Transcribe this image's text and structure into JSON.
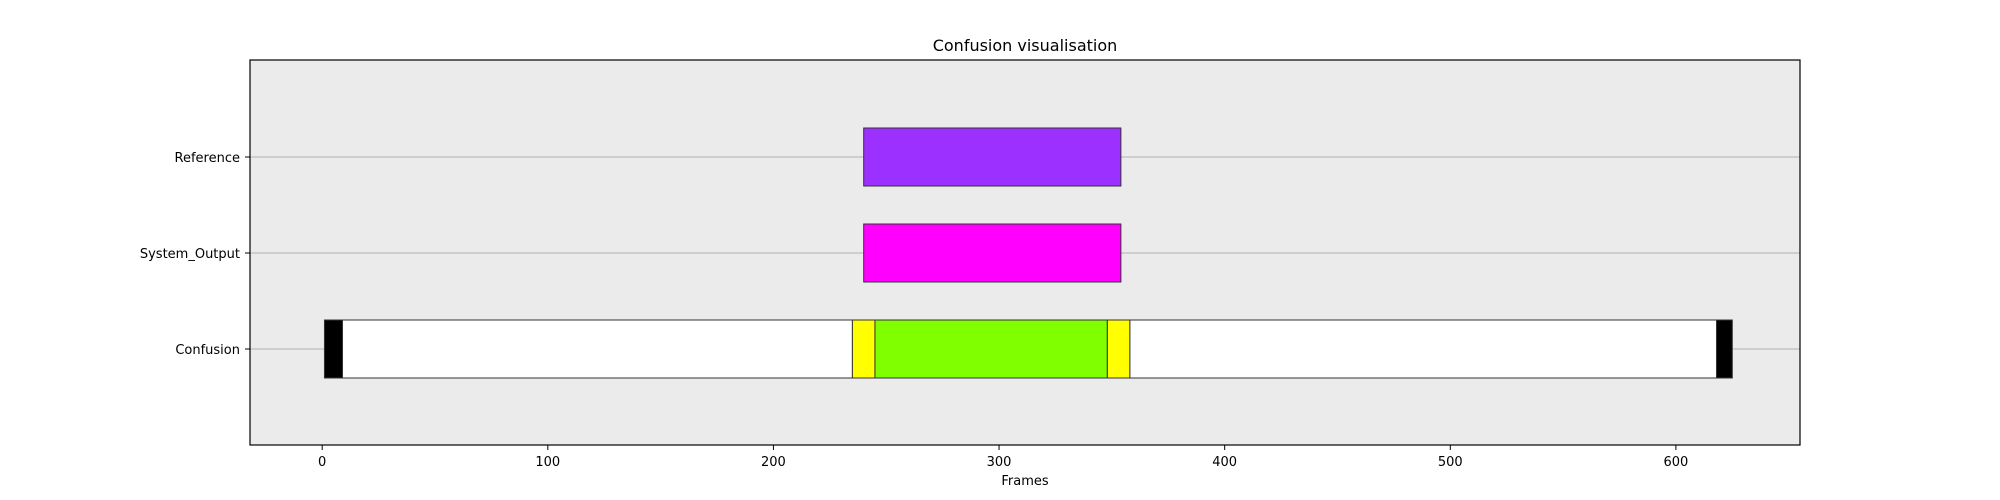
{
  "chart_data": {
    "type": "broken_barh",
    "title": "Confusion visualisation",
    "xlabel": "Frames",
    "ylabel": "",
    "xlim": [
      -32,
      655
    ],
    "x_ticks": [
      0,
      100,
      200,
      300,
      400,
      500,
      600
    ],
    "x_tick_labels": [
      "0",
      "100",
      "200",
      "300",
      "400",
      "500",
      "600"
    ],
    "grid": "horizontal",
    "background_color": "#ebebeb",
    "rows": [
      {
        "label": "Reference",
        "segments": [
          {
            "start": 240,
            "end": 354,
            "color": "#9b30ff"
          }
        ]
      },
      {
        "label": "System_Output",
        "segments": [
          {
            "start": 240,
            "end": 354,
            "color": "#ff00ff"
          }
        ]
      },
      {
        "label": "Confusion",
        "segments": [
          {
            "start": 1,
            "end": 9,
            "color": "#000000"
          },
          {
            "start": 9,
            "end": 235,
            "color": "#ffffff"
          },
          {
            "start": 235,
            "end": 245,
            "color": "#ffff00"
          },
          {
            "start": 245,
            "end": 348,
            "color": "#7fff00"
          },
          {
            "start": 348,
            "end": 358,
            "color": "#ffff00"
          },
          {
            "start": 358,
            "end": 618,
            "color": "#ffffff"
          },
          {
            "start": 618,
            "end": 625,
            "color": "#000000"
          }
        ]
      }
    ]
  }
}
